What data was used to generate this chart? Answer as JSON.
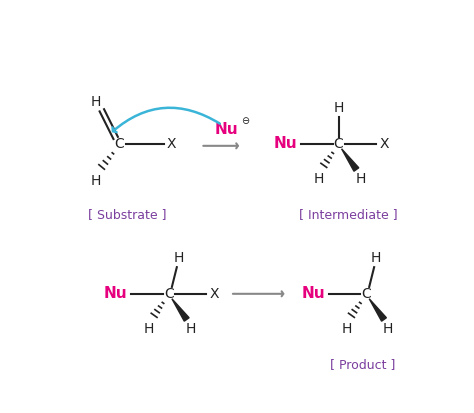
{
  "bg_color": "#ffffff",
  "magenta": "#e6007e",
  "gray": "#888888",
  "dark": "#222222",
  "cyan": "#3ab5d8",
  "purple": "#7b3f9e",
  "panel_labels": {
    "substrate": "[ Substrate ]",
    "intermediate": "[ Intermediate ]",
    "product": "[ Product ]"
  }
}
